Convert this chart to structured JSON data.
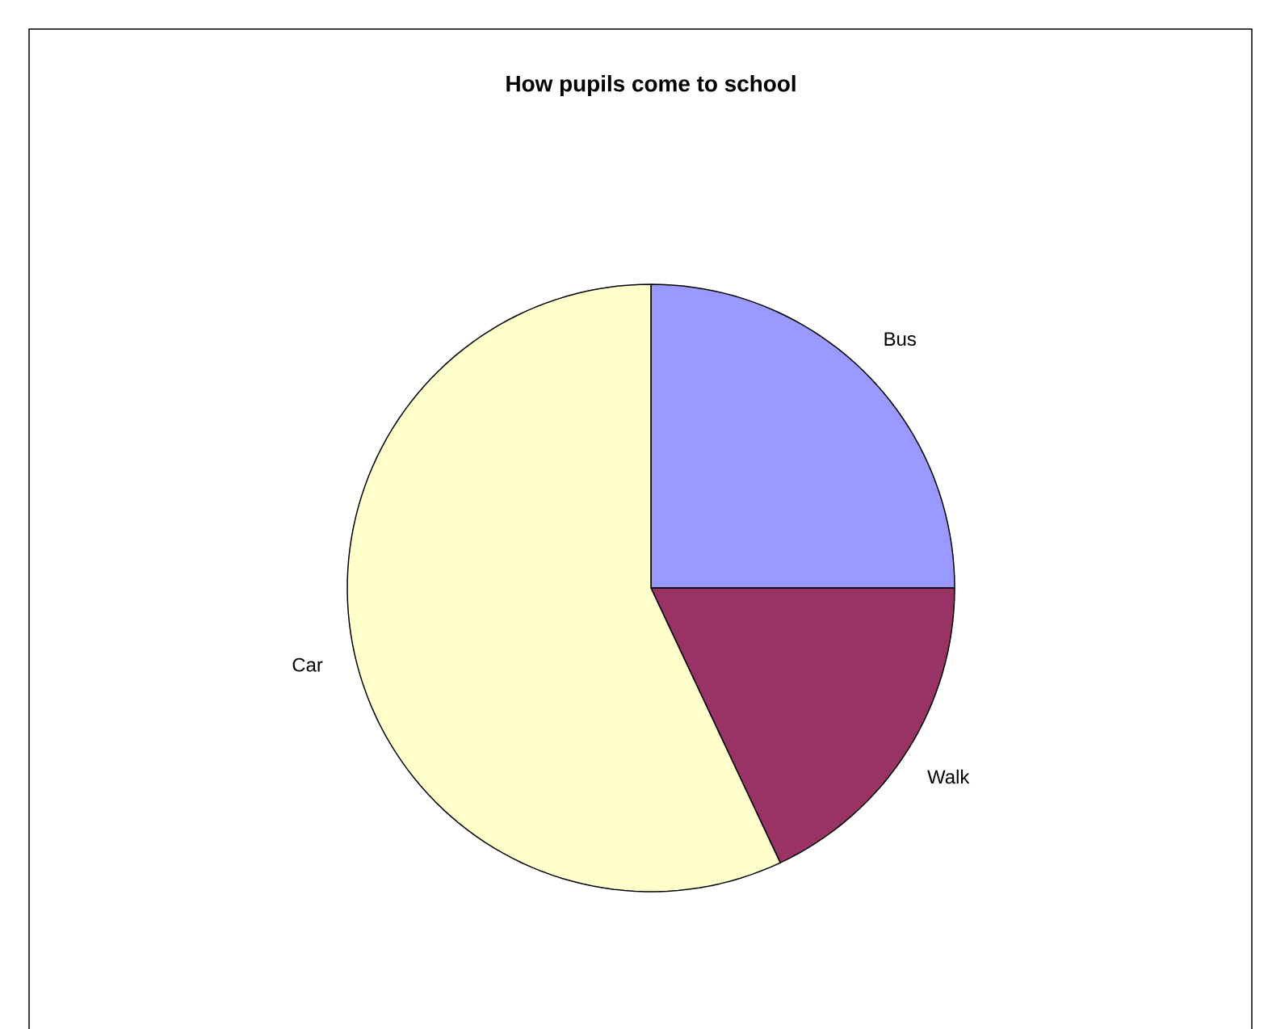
{
  "chart_data": {
    "type": "pie",
    "title": "How pupils come to school",
    "categories": [
      "Bus",
      "Walk",
      "Car"
    ],
    "values": [
      25,
      18,
      57
    ],
    "colors": [
      "#9999ff",
      "#993366",
      "#ffffcc"
    ]
  }
}
